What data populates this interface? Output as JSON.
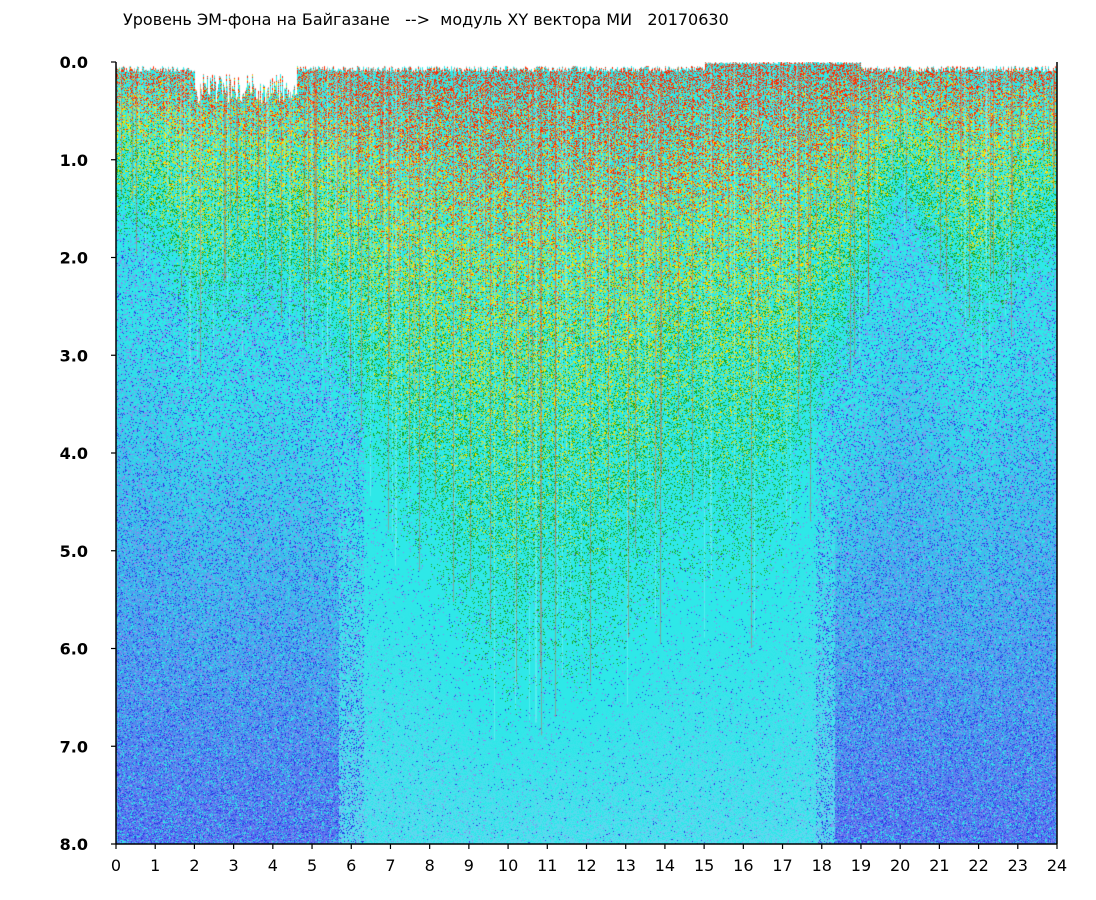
{
  "chart_data": {
    "type": "heatmap",
    "title": "Уровень ЭМ-фона на Байгазане   -->  модуль XY вектора МИ   20170630",
    "xlabel": "",
    "ylabel": "",
    "x_ticks": [
      "0",
      "1",
      "2",
      "3",
      "4",
      "5",
      "6",
      "7",
      "8",
      "9",
      "10",
      "11",
      "12",
      "13",
      "14",
      "15",
      "16",
      "17",
      "18",
      "19",
      "20",
      "21",
      "22",
      "23",
      "24"
    ],
    "y_ticks": [
      "0.0",
      "1.0",
      "2.0",
      "3.0",
      "4.0",
      "5.0",
      "6.0",
      "7.0",
      "8.0"
    ],
    "xlim": [
      0,
      24
    ],
    "ylim": [
      0,
      8
    ],
    "y_axis_inverted": true,
    "grid": false,
    "colors": {
      "high": "#ff2a00",
      "upper": "#ffe100",
      "mid": "#19a81e",
      "low": "#2ee8e8",
      "lowest": "#2a39e6",
      "haze": "#8a8af0"
    },
    "activity_by_hour": [
      {
        "hour": 0,
        "green_depth": 1.6
      },
      {
        "hour": 1,
        "green_depth": 1.8
      },
      {
        "hour": 2,
        "green_depth": 2.6
      },
      {
        "hour": 3,
        "green_depth": 2.4
      },
      {
        "hour": 4,
        "green_depth": 2.3
      },
      {
        "hour": 5,
        "green_depth": 2.6
      },
      {
        "hour": 6,
        "green_depth": 3.2
      },
      {
        "hour": 7,
        "green_depth": 4.2
      },
      {
        "hour": 8,
        "green_depth": 4.7
      },
      {
        "hour": 9,
        "green_depth": 5.4
      },
      {
        "hour": 10,
        "green_depth": 5.8
      },
      {
        "hour": 11,
        "green_depth": 5.5
      },
      {
        "hour": 12,
        "green_depth": 5.6
      },
      {
        "hour": 13,
        "green_depth": 5.3
      },
      {
        "hour": 14,
        "green_depth": 4.8
      },
      {
        "hour": 15,
        "green_depth": 4.6
      },
      {
        "hour": 16,
        "green_depth": 4.8
      },
      {
        "hour": 17,
        "green_depth": 4.5
      },
      {
        "hour": 18,
        "green_depth": 3.3
      },
      {
        "hour": 19,
        "green_depth": 2.4
      },
      {
        "hour": 20,
        "green_depth": 1.4
      },
      {
        "hour": 21,
        "green_depth": 2.0
      },
      {
        "hour": 22,
        "green_depth": 2.6
      },
      {
        "hour": 23,
        "green_depth": 2.1
      },
      {
        "hour": 24,
        "green_depth": 1.9
      }
    ]
  }
}
